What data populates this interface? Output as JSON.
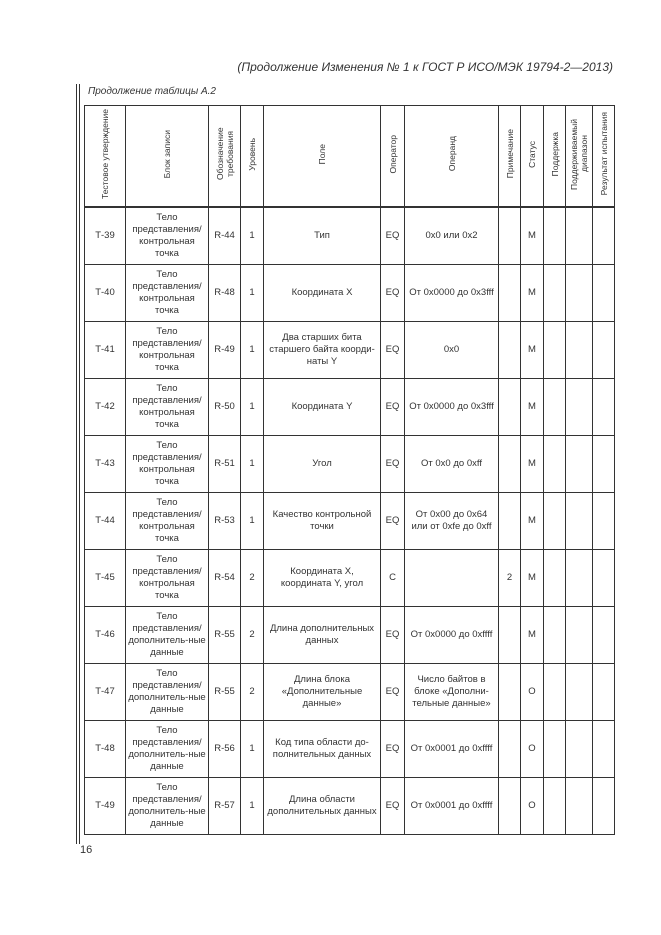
{
  "header": "(Продолжение Изменения № 1 к ГОСТ Р ИСО/МЭК 19794-2—2013)",
  "caption": "Продолжение таблицы А.2",
  "columns": [
    "Тестовое утверждение",
    "Блок записи",
    "Обозначение требования",
    "Уровень",
    "Поле",
    "Оператор",
    "Операнд",
    "Примечание",
    "Статус",
    "Поддержка",
    "Поддерживаемый диапазон",
    "Результат испытания"
  ],
  "rows": [
    [
      "Т-39",
      "Тело представления/ контрольная точка",
      "R-44",
      "1",
      "Тип",
      "EQ",
      "0x0 или 0x2",
      "",
      "M",
      "",
      "",
      ""
    ],
    [
      "Т-40",
      "Тело представления/ контрольная точка",
      "R-48",
      "1",
      "Координата X",
      "EQ",
      "От 0x0000 до 0x3fff",
      "",
      "M",
      "",
      "",
      ""
    ],
    [
      "Т-41",
      "Тело представления/ контрольная точка",
      "R-49",
      "1",
      "Два старших бита старшего байта коорди-наты Y",
      "EQ",
      "0x0",
      "",
      "M",
      "",
      "",
      ""
    ],
    [
      "Т-42",
      "Тело представления/ контрольная точка",
      "R-50",
      "1",
      "Координата Y",
      "EQ",
      "От 0x0000 до 0x3fff",
      "",
      "M",
      "",
      "",
      ""
    ],
    [
      "Т-43",
      "Тело представления/ контрольная точка",
      "R-51",
      "1",
      "Угол",
      "EQ",
      "От 0x0 до 0xff",
      "",
      "M",
      "",
      "",
      ""
    ],
    [
      "Т-44",
      "Тело представления/ контрольная точка",
      "R-53",
      "1",
      "Качество контрольной точки",
      "EQ",
      "От 0x00 до 0x64 или от 0xfe до 0xff",
      "",
      "M",
      "",
      "",
      ""
    ],
    [
      "Т-45",
      "Тело представления/ контрольная точка",
      "R-54",
      "2",
      "Координата X, координата Y, угол",
      "C",
      "",
      "2",
      "M",
      "",
      "",
      ""
    ],
    [
      "Т-46",
      "Тело представления/ дополнитель-ные данные",
      "R-55",
      "2",
      "Длина дополнительных данных",
      "EQ",
      "От 0x0000 до 0xffff",
      "",
      "M",
      "",
      "",
      ""
    ],
    [
      "Т-47",
      "Тело представления/ дополнитель-ные данные",
      "R-55",
      "2",
      "Длина блока «Дополнительные данные»",
      "EQ",
      "Число байтов в блоке «Дополни-тельные данные»",
      "",
      "O",
      "",
      "",
      ""
    ],
    [
      "Т-48",
      "Тело представления/ дополнитель-ные данные",
      "R-56",
      "1",
      "Код типа области до-полнительных данных",
      "EQ",
      "От 0x0001 до 0xffff",
      "",
      "O",
      "",
      "",
      ""
    ],
    [
      "Т-49",
      "Тело представления/ дополнитель-ные данные",
      "R-57",
      "1",
      "Длина области дополнительных данных",
      "EQ",
      "От 0x0001 до 0xffff",
      "",
      "O",
      "",
      "",
      ""
    ]
  ],
  "page_number": "16"
}
